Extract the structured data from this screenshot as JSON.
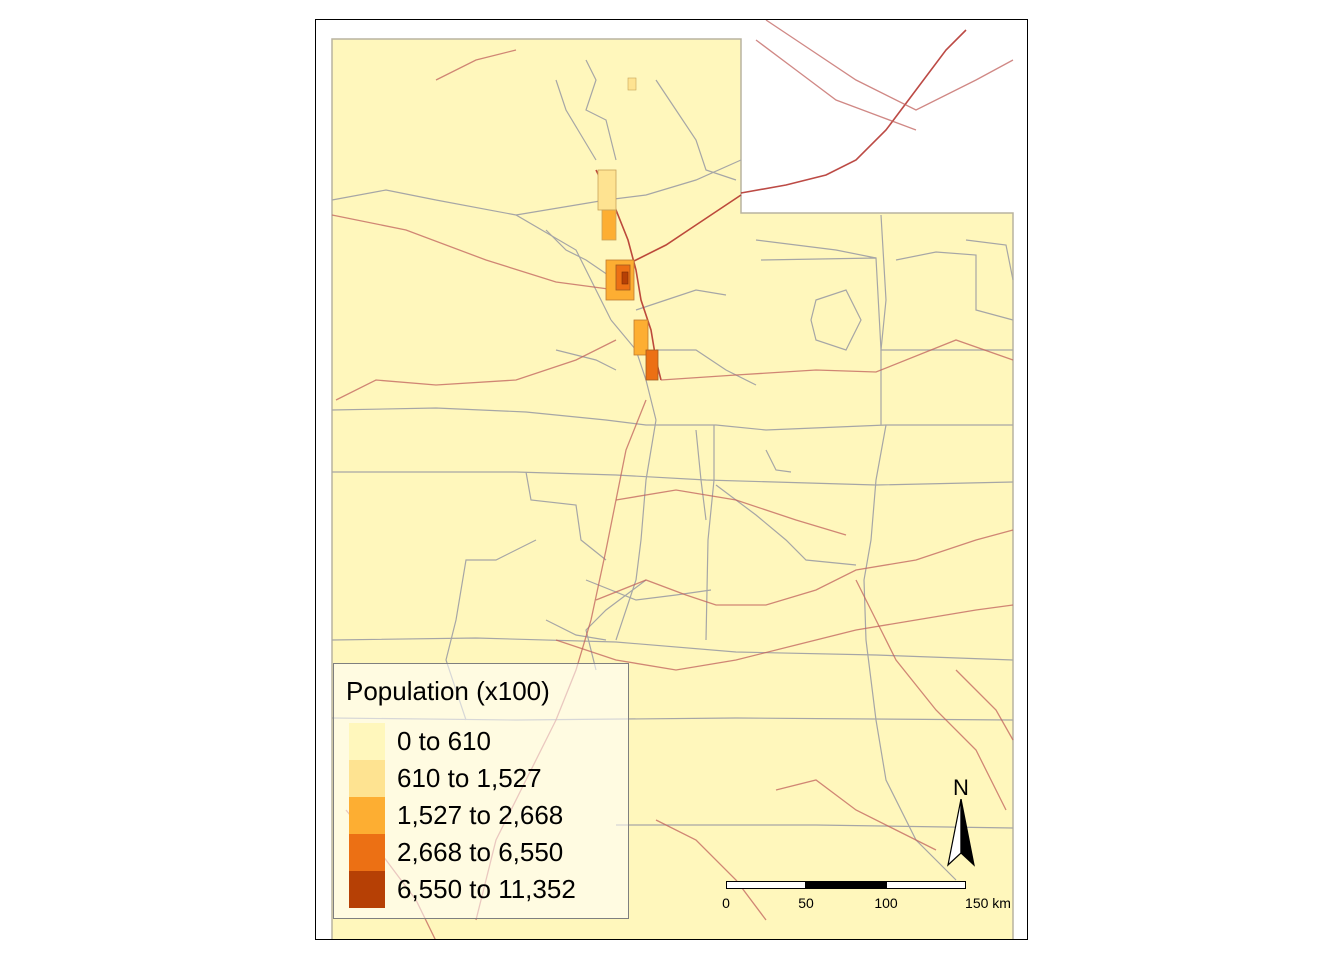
{
  "legend": {
    "title": "Population (x100)",
    "classes": [
      {
        "label": "0 to 610",
        "color": "#fff7bc"
      },
      {
        "label": "610 to 1,527",
        "color": "#fee391"
      },
      {
        "label": "1,527 to 2,668",
        "color": "#fdae32"
      },
      {
        "label": "2,668 to 6,550",
        "color": "#ec7014"
      },
      {
        "label": "6,550 to 11,352",
        "color": "#b64005"
      }
    ]
  },
  "scale_bar": {
    "ticks": [
      "0",
      "50",
      "100",
      "150 km"
    ]
  },
  "north_arrow": {
    "label": "N"
  },
  "colors": {
    "tract_border": "#a6a6a6",
    "road": "#c0605c",
    "highway": "#b02a24"
  }
}
